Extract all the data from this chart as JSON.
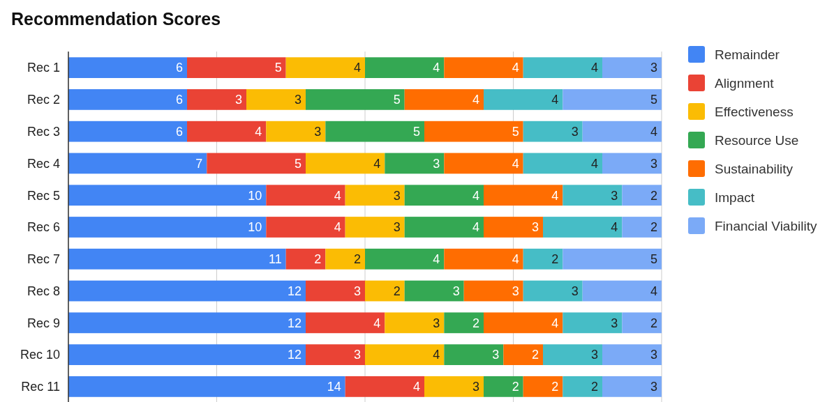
{
  "chart_data": {
    "type": "bar",
    "title": "Recommendation Scores",
    "orientation": "horizontal",
    "stacked": true,
    "data_labels": true,
    "grid": "x",
    "legend": "top right",
    "tick_labels": "y",
    "categories": [
      "Rec 1",
      "Rec 2",
      "Rec 3",
      "Rec 4",
      "Rec 5",
      "Rec 6",
      "Rec 7",
      "Rec 8",
      "Rec 9",
      "Rec 10",
      "Rec 11"
    ],
    "xlim": [
      0,
      30
    ],
    "xticks": [
      {
        "value": 0,
        "label": null
      },
      {
        "value": 7.5,
        "label": null
      },
      {
        "value": 15,
        "label": null
      },
      {
        "value": 22.5,
        "label": null
      },
      {
        "value": 30,
        "label": null
      }
    ],
    "series": [
      {
        "name": "Remainder",
        "color": "#4285f4",
        "values": [
          6,
          6,
          6,
          7,
          10,
          10,
          11,
          12,
          12,
          12,
          14
        ]
      },
      {
        "name": "Alignment",
        "color": "#ea4335",
        "values": [
          5,
          3,
          4,
          5,
          4,
          4,
          2,
          3,
          4,
          3,
          4
        ]
      },
      {
        "name": "Effectiveness",
        "color": "#fbbc04",
        "values": [
          4,
          3,
          3,
          4,
          3,
          3,
          2,
          2,
          3,
          4,
          3
        ]
      },
      {
        "name": "Resource Use",
        "color": "#34a853",
        "values": [
          4,
          5,
          5,
          3,
          4,
          4,
          4,
          3,
          2,
          3,
          2
        ]
      },
      {
        "name": "Sustainability",
        "color": "#ff6d01",
        "values": [
          4,
          4,
          5,
          4,
          4,
          3,
          4,
          3,
          4,
          2,
          2
        ]
      },
      {
        "name": "Impact",
        "color": "#46bdc6",
        "values": [
          4,
          4,
          3,
          4,
          3,
          4,
          2,
          3,
          3,
          3,
          2
        ]
      },
      {
        "name": "Financial Viability",
        "color": "#7baaf7",
        "values": [
          3,
          5,
          4,
          3,
          2,
          2,
          5,
          4,
          2,
          3,
          3
        ]
      }
    ]
  }
}
